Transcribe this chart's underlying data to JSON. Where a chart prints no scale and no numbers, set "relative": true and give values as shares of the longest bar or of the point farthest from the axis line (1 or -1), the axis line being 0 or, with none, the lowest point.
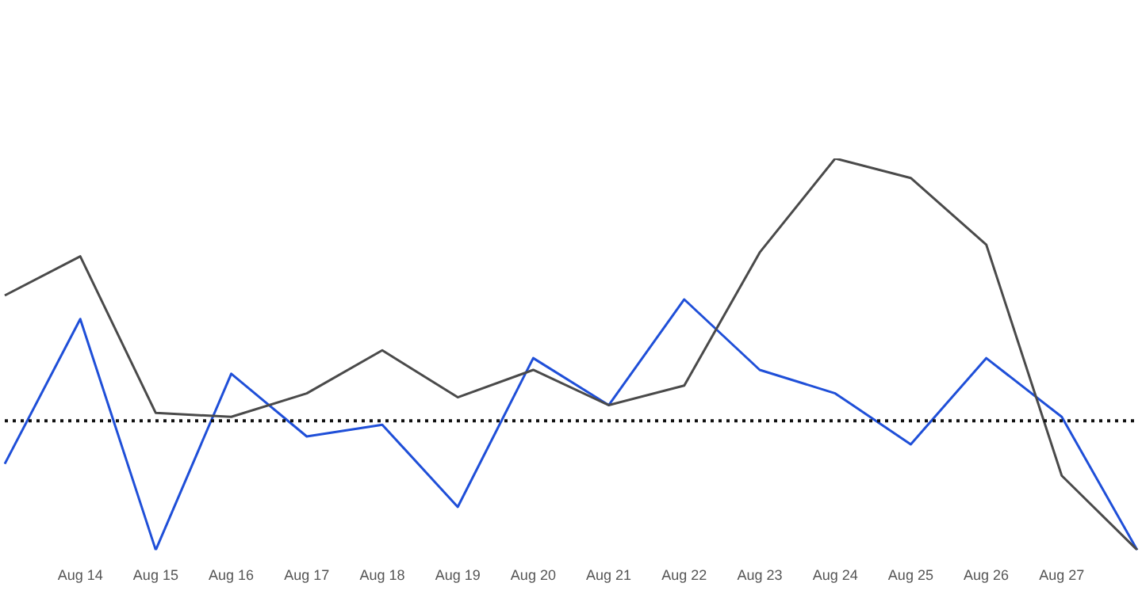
{
  "chart_data": {
    "type": "line",
    "relative": true,
    "categories": [
      null,
      "Aug 14",
      "Aug 15",
      "Aug 16",
      "Aug 17",
      "Aug 18",
      "Aug 19",
      "Aug 20",
      "Aug 21",
      "Aug 22",
      "Aug 23",
      "Aug 24",
      "Aug 25",
      "Aug 26",
      "Aug 27",
      null
    ],
    "series": [
      {
        "color": "#4a4a4a",
        "values": [
          0.65,
          0.75,
          0.35,
          0.34,
          0.4,
          0.51,
          0.39,
          0.46,
          0.37,
          0.42,
          0.76,
          1,
          0.95,
          0.78,
          0.19,
          0
        ]
      },
      {
        "color": "#1f4fd8",
        "values": [
          0.22,
          0.59,
          0,
          0.45,
          0.29,
          0.32,
          0.11,
          0.49,
          0.37,
          0.64,
          0.46,
          0.4,
          0.27,
          0.49,
          0.34,
          0
        ]
      }
    ],
    "ref_lines": [
      {
        "axis": "y",
        "value": 0.33,
        "color": "#111111",
        "line_style": "dotted"
      }
    ],
    "marker": "none",
    "legend": false
  }
}
